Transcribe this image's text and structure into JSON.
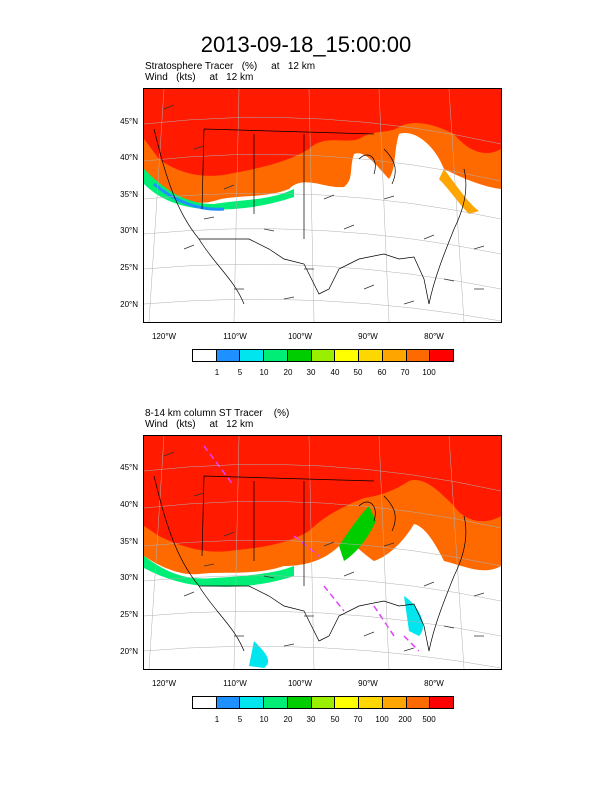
{
  "title": "2013-09-18_15:00:00",
  "panel1": {
    "line1": "Stratosphere Tracer   (%)     at   12 km",
    "line2": "Wind   (kts)     at   12 km",
    "lat_labels": [
      "45°N",
      "40°N",
      "35°N",
      "30°N",
      "25°N",
      "20°N"
    ],
    "lon_labels": [
      "120°W",
      "110°W",
      "100°W",
      "90°W",
      "80°W"
    ],
    "colorbar_labels": [
      "1",
      "5",
      "10",
      "20",
      "30",
      "40",
      "50",
      "60",
      "70",
      "100"
    ],
    "colorbar_colors": [
      "#ffffff",
      "#1e90ff",
      "#00e5ee",
      "#00ee76",
      "#00cd00",
      "#9aee00",
      "#ffff00",
      "#ffd700",
      "#ffa500",
      "#ff6a00",
      "#ff0000"
    ]
  },
  "panel2": {
    "line1": "8-14 km column ST Tracer    (%)",
    "line2": "Wind   (kts)     at   12 km",
    "lat_labels": [
      "45°N",
      "40°N",
      "35°N",
      "30°N",
      "25°N",
      "20°N"
    ],
    "lon_labels": [
      "120°W",
      "110°W",
      "100°W",
      "90°W",
      "80°W"
    ],
    "colorbar_labels": [
      "1",
      "5",
      "10",
      "20",
      "30",
      "50",
      "70",
      "100",
      "200",
      "500"
    ],
    "colorbar_colors": [
      "#ffffff",
      "#1e90ff",
      "#00e5ee",
      "#00ee76",
      "#00cd00",
      "#9aee00",
      "#ffff00",
      "#ffd700",
      "#ffa500",
      "#ff6a00",
      "#ff0000"
    ]
  }
}
